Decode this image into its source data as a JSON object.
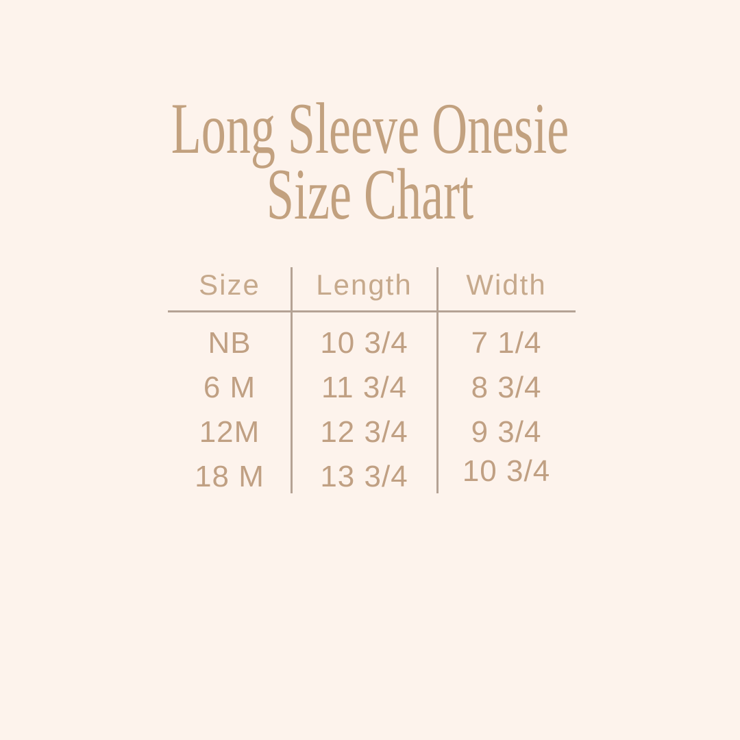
{
  "title": {
    "line1": "Long Sleeve Onesie",
    "line2": "Size Chart"
  },
  "chart_data": {
    "type": "table",
    "title": "Long Sleeve Onesie Size Chart",
    "columns": [
      "Size",
      "Length",
      "Width"
    ],
    "rows": [
      [
        "NB",
        "10 3/4",
        "7 1/4"
      ],
      [
        "6 M",
        "11 3/4",
        "8 3/4"
      ],
      [
        "12M",
        "12 3/4",
        "9 3/4"
      ],
      [
        "18 M",
        "13 3/4",
        "10 3/4"
      ]
    ],
    "layout_hints": {
      "header_divider": "horizontal rule under header",
      "column_dividers": "vertical rules between all three columns",
      "alignment": "center"
    }
  },
  "colors": {
    "background": "#fdf3ec",
    "title_text": "#c2a17f",
    "header_text": "#c6a98c",
    "table_text": "#c0a083",
    "divider_line": "#b4a294"
  }
}
